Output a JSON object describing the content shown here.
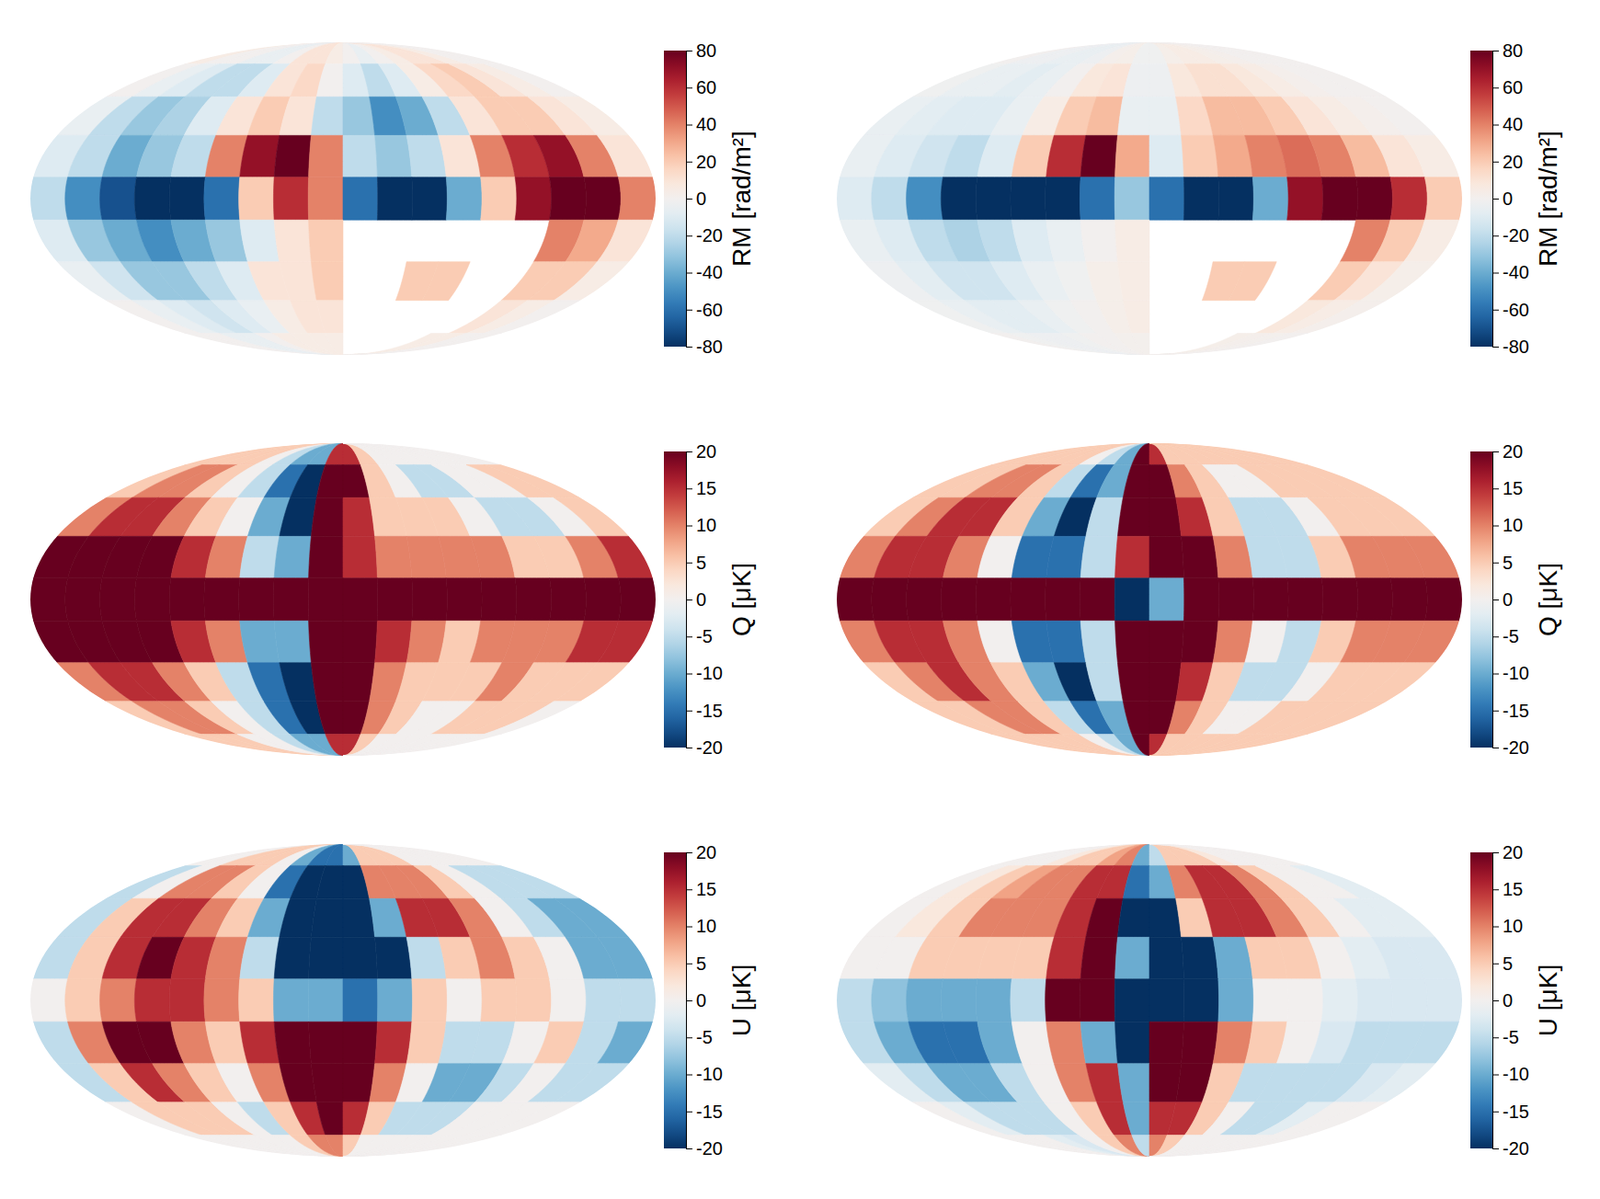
{
  "chart_data": [
    {
      "type": "heatmap",
      "lon": [
        -170,
        -150,
        -130,
        -110,
        -90,
        -70,
        -50,
        -30,
        -10,
        10,
        30,
        50,
        70,
        90,
        110,
        130,
        150,
        170
      ],
      "lat": [
        80,
        60,
        40,
        20,
        0,
        -20,
        -40,
        -60,
        -80
      ],
      "values": [
        [
          5,
          0,
          0,
          -5,
          -5,
          0,
          10,
          10,
          5,
          0,
          -5,
          0,
          5,
          10,
          10,
          5,
          0,
          0
        ],
        [
          0,
          -5,
          -10,
          -20,
          -20,
          -10,
          10,
          15,
          0,
          -10,
          -20,
          -10,
          5,
          15,
          20,
          10,
          5,
          0
        ],
        [
          -5,
          -20,
          -30,
          -25,
          -10,
          10,
          20,
          10,
          -20,
          -30,
          -50,
          -40,
          -20,
          10,
          20,
          20,
          10,
          5
        ],
        [
          -10,
          -20,
          -40,
          -30,
          -20,
          40,
          70,
          80,
          40,
          -20,
          -30,
          -20,
          10,
          40,
          60,
          70,
          40,
          10
        ],
        [
          -20,
          -50,
          -70,
          -80,
          -80,
          -60,
          20,
          60,
          40,
          -60,
          -80,
          -80,
          -40,
          20,
          70,
          80,
          80,
          40
        ],
        [
          -10,
          -30,
          -40,
          -50,
          -40,
          -30,
          -10,
          10,
          20,
          null,
          null,
          null,
          null,
          null,
          null,
          40,
          30,
          10
        ],
        [
          -5,
          -15,
          -30,
          -30,
          -20,
          -10,
          10,
          10,
          20,
          null,
          null,
          20,
          20,
          null,
          null,
          20,
          20,
          5
        ],
        [
          0,
          -5,
          -10,
          -15,
          -10,
          -5,
          5,
          10,
          10,
          null,
          null,
          null,
          null,
          null,
          null,
          10,
          5,
          0
        ],
        [
          0,
          0,
          -5,
          -5,
          0,
          5,
          5,
          5,
          5,
          null,
          null,
          null,
          null,
          null,
          5,
          5,
          0,
          0
        ]
      ],
      "colorbar": {
        "label": "RM [rad/m²]",
        "range": [
          -80,
          80
        ],
        "ticks": [
          80,
          60,
          40,
          20,
          0,
          -20,
          -40,
          -60,
          -80
        ]
      }
    },
    {
      "type": "heatmap",
      "lon": [
        -170,
        -150,
        -130,
        -110,
        -90,
        -70,
        -50,
        -30,
        -10,
        10,
        30,
        50,
        70,
        90,
        110,
        130,
        150,
        170
      ],
      "lat": [
        80,
        60,
        40,
        20,
        0,
        -20,
        -40,
        -60,
        -80
      ],
      "values": [
        [
          5,
          5,
          5,
          5,
          0,
          -5,
          -10,
          -10,
          15,
          15,
          5,
          0,
          0,
          0,
          0,
          0,
          0,
          0
        ],
        [
          5,
          10,
          10,
          5,
          0,
          -5,
          -15,
          -20,
          20,
          20,
          5,
          0,
          -5,
          -5,
          0,
          0,
          5,
          5
        ],
        [
          10,
          15,
          15,
          10,
          5,
          0,
          -10,
          -20,
          20,
          15,
          5,
          5,
          5,
          0,
          -5,
          -5,
          0,
          5
        ],
        [
          20,
          20,
          20,
          20,
          15,
          10,
          -5,
          -10,
          20,
          15,
          10,
          10,
          10,
          10,
          5,
          5,
          10,
          15
        ],
        [
          25,
          25,
          25,
          25,
          25,
          25,
          20,
          20,
          25,
          25,
          20,
          20,
          20,
          20,
          25,
          25,
          25,
          25
        ],
        [
          20,
          20,
          20,
          20,
          15,
          10,
          -10,
          -10,
          20,
          20,
          15,
          10,
          5,
          10,
          10,
          10,
          15,
          15
        ],
        [
          10,
          15,
          15,
          10,
          5,
          -5,
          -15,
          -20,
          20,
          20,
          10,
          5,
          5,
          5,
          10,
          5,
          5,
          5
        ],
        [
          5,
          10,
          10,
          5,
          0,
          -5,
          -15,
          -20,
          20,
          20,
          10,
          5,
          0,
          0,
          5,
          5,
          5,
          0
        ],
        [
          5,
          5,
          5,
          0,
          0,
          -5,
          -10,
          -10,
          15,
          15,
          5,
          0,
          0,
          0,
          0,
          0,
          0,
          0
        ]
      ],
      "colorbar": {
        "label": "Q [μK]",
        "range": [
          -20,
          20
        ],
        "ticks": [
          20,
          15,
          10,
          5,
          0,
          -5,
          -10,
          -15,
          -20
        ]
      }
    },
    {
      "type": "heatmap",
      "lon": [
        -170,
        -150,
        -130,
        -110,
        -90,
        -70,
        -50,
        -30,
        -10,
        10,
        30,
        50,
        70,
        90,
        110,
        130,
        150,
        170
      ],
      "lat": [
        80,
        60,
        40,
        20,
        0,
        -20,
        -40,
        -60,
        -80
      ],
      "values": [
        [
          0,
          0,
          5,
          5,
          5,
          0,
          -10,
          -15,
          -15,
          -10,
          5,
          5,
          5,
          0,
          0,
          0,
          0,
          0
        ],
        [
          -5,
          0,
          10,
          10,
          5,
          0,
          -15,
          -20,
          -20,
          -20,
          10,
          10,
          10,
          5,
          0,
          -5,
          -5,
          -5
        ],
        [
          -5,
          5,
          15,
          15,
          10,
          5,
          -10,
          -20,
          -20,
          -20,
          -10,
          15,
          15,
          10,
          0,
          -5,
          -10,
          -10
        ],
        [
          -5,
          5,
          15,
          20,
          15,
          10,
          -5,
          -20,
          -20,
          -20,
          -20,
          -5,
          5,
          10,
          5,
          0,
          -10,
          -10
        ],
        [
          0,
          5,
          10,
          15,
          15,
          10,
          5,
          -10,
          -10,
          -15,
          -10,
          5,
          0,
          5,
          5,
          0,
          -5,
          -5
        ],
        [
          -5,
          10,
          20,
          20,
          10,
          5,
          15,
          20,
          20,
          20,
          15,
          5,
          -5,
          -5,
          0,
          5,
          -5,
          -10
        ],
        [
          -5,
          5,
          15,
          10,
          5,
          0,
          10,
          20,
          20,
          20,
          10,
          0,
          -10,
          -10,
          -5,
          0,
          -5,
          -5
        ],
        [
          0,
          5,
          5,
          5,
          0,
          -5,
          5,
          15,
          20,
          15,
          5,
          -5,
          -5,
          -5,
          0,
          0,
          0,
          0
        ],
        [
          0,
          0,
          0,
          0,
          0,
          0,
          5,
          10,
          10,
          5,
          0,
          0,
          0,
          0,
          0,
          0,
          0,
          0
        ]
      ],
      "colorbar": {
        "label": "U [μK]",
        "range": [
          -20,
          20
        ],
        "ticks": [
          20,
          15,
          10,
          5,
          0,
          -5,
          -10,
          -15,
          -20
        ]
      }
    },
    {
      "type": "heatmap",
      "lon": [
        -170,
        -150,
        -130,
        -110,
        -90,
        -70,
        -50,
        -30,
        -10,
        10,
        30,
        50,
        70,
        90,
        110,
        130,
        150,
        170
      ],
      "lat": [
        80,
        60,
        40,
        20,
        0,
        -20,
        -40,
        -60,
        -80
      ],
      "values": [
        [
          0,
          -3,
          -3,
          -5,
          -5,
          -3,
          2,
          3,
          -2,
          -2,
          3,
          5,
          5,
          3,
          2,
          0,
          0,
          0
        ],
        [
          -2,
          -5,
          -5,
          -8,
          -5,
          0,
          8,
          10,
          -3,
          -3,
          8,
          12,
          12,
          8,
          5,
          2,
          0,
          0
        ],
        [
          -5,
          -8,
          -10,
          -10,
          -5,
          5,
          20,
          25,
          -5,
          -5,
          15,
          25,
          25,
          20,
          10,
          5,
          2,
          0
        ],
        [
          -5,
          -10,
          -15,
          -20,
          -10,
          20,
          60,
          80,
          30,
          -10,
          20,
          30,
          40,
          45,
          40,
          25,
          10,
          5
        ],
        [
          -10,
          -20,
          -50,
          -80,
          -80,
          -80,
          -80,
          -60,
          -30,
          -60,
          -80,
          -80,
          -40,
          70,
          80,
          80,
          60,
          20
        ],
        [
          -5,
          -10,
          -20,
          -25,
          -20,
          -10,
          -5,
          0,
          5,
          null,
          null,
          null,
          null,
          null,
          null,
          40,
          20,
          5
        ],
        [
          -3,
          -8,
          -15,
          -15,
          -10,
          -5,
          -2,
          3,
          5,
          null,
          null,
          20,
          20,
          null,
          null,
          20,
          10,
          3
        ],
        [
          -2,
          -5,
          -8,
          -8,
          -5,
          -2,
          0,
          3,
          5,
          null,
          null,
          null,
          null,
          null,
          null,
          8,
          5,
          2
        ],
        [
          0,
          -2,
          -3,
          -3,
          -2,
          0,
          0,
          1,
          1,
          null,
          null,
          null,
          null,
          null,
          3,
          2,
          1,
          0
        ]
      ],
      "colorbar": {
        "label": "RM [rad/m²]",
        "range": [
          -80,
          80
        ],
        "ticks": [
          80,
          60,
          40,
          20,
          0,
          -20,
          -40,
          -60,
          -80
        ]
      }
    },
    {
      "type": "heatmap",
      "lon": [
        -170,
        -150,
        -130,
        -110,
        -90,
        -70,
        -50,
        -30,
        -10,
        10,
        30,
        50,
        70,
        90,
        110,
        130,
        150,
        170
      ],
      "lat": [
        80,
        60,
        40,
        20,
        0,
        -20,
        -40,
        -60,
        -80
      ],
      "values": [
        [
          5,
          5,
          5,
          5,
          5,
          0,
          -5,
          -10,
          20,
          15,
          5,
          5,
          5,
          5,
          5,
          5,
          5,
          5
        ],
        [
          5,
          5,
          10,
          10,
          5,
          -5,
          -15,
          -10,
          20,
          20,
          10,
          5,
          0,
          0,
          5,
          5,
          5,
          5
        ],
        [
          5,
          10,
          15,
          15,
          5,
          -10,
          -20,
          -5,
          20,
          20,
          15,
          5,
          -5,
          -5,
          0,
          5,
          5,
          5
        ],
        [
          10,
          15,
          15,
          10,
          0,
          -15,
          -15,
          -5,
          15,
          20,
          20,
          10,
          -5,
          -5,
          5,
          10,
          10,
          10
        ],
        [
          25,
          25,
          25,
          25,
          25,
          25,
          25,
          20,
          -20,
          -10,
          20,
          20,
          20,
          20,
          25,
          25,
          25,
          25
        ],
        [
          10,
          15,
          15,
          10,
          0,
          -15,
          -15,
          -5,
          20,
          20,
          20,
          10,
          0,
          -5,
          5,
          10,
          10,
          10
        ],
        [
          5,
          10,
          15,
          10,
          5,
          -10,
          -20,
          -5,
          20,
          20,
          15,
          5,
          -5,
          -5,
          0,
          5,
          5,
          5
        ],
        [
          5,
          5,
          10,
          10,
          5,
          -5,
          -15,
          -10,
          20,
          20,
          10,
          5,
          0,
          0,
          5,
          5,
          5,
          5
        ],
        [
          5,
          5,
          5,
          5,
          5,
          0,
          -5,
          -10,
          20,
          15,
          5,
          5,
          5,
          5,
          5,
          5,
          5,
          5
        ]
      ],
      "colorbar": {
        "label": "Q [μK]",
        "range": [
          -20,
          20
        ],
        "ticks": [
          20,
          15,
          10,
          5,
          0,
          -5,
          -10,
          -15,
          -20
        ]
      }
    },
    {
      "type": "heatmap",
      "lon": [
        -170,
        -150,
        -130,
        -110,
        -90,
        -70,
        -50,
        -30,
        -10,
        10,
        30,
        50,
        70,
        90,
        110,
        130,
        150,
        170
      ],
      "lat": [
        80,
        60,
        40,
        20,
        0,
        -20,
        -40,
        -60,
        -80
      ],
      "values": [
        [
          0,
          0,
          0,
          2,
          5,
          5,
          8,
          10,
          -10,
          -5,
          5,
          5,
          5,
          2,
          0,
          0,
          0,
          0
        ],
        [
          0,
          2,
          5,
          8,
          10,
          10,
          15,
          15,
          -15,
          -10,
          10,
          15,
          15,
          10,
          5,
          0,
          0,
          -2
        ],
        [
          0,
          2,
          5,
          10,
          10,
          10,
          15,
          20,
          -20,
          -20,
          5,
          15,
          15,
          10,
          5,
          0,
          -2,
          -2
        ],
        [
          0,
          0,
          5,
          5,
          5,
          5,
          15,
          20,
          -10,
          -20,
          -20,
          -10,
          5,
          5,
          0,
          -2,
          -3,
          -3
        ],
        [
          -5,
          -8,
          -10,
          -10,
          -10,
          -5,
          20,
          20,
          -20,
          -20,
          -20,
          -10,
          0,
          0,
          -2,
          -3,
          -3,
          -3
        ],
        [
          -5,
          -10,
          -15,
          -15,
          -10,
          0,
          10,
          -10,
          -20,
          20,
          20,
          10,
          5,
          0,
          -3,
          -5,
          -5,
          -5
        ],
        [
          -2,
          -5,
          -10,
          -10,
          -5,
          0,
          10,
          15,
          -10,
          20,
          20,
          5,
          -5,
          -5,
          -5,
          -5,
          -3,
          -2
        ],
        [
          0,
          -2,
          -5,
          -5,
          -5,
          0,
          5,
          15,
          -10,
          15,
          15,
          5,
          0,
          -5,
          -5,
          -2,
          0,
          0
        ],
        [
          0,
          0,
          0,
          -2,
          -3,
          0,
          5,
          10,
          -5,
          10,
          5,
          0,
          0,
          0,
          0,
          0,
          0,
          0
        ]
      ],
      "colorbar": {
        "label": "U [μK]",
        "range": [
          -20,
          20
        ],
        "ticks": [
          20,
          15,
          10,
          5,
          0,
          -5,
          -10,
          -15,
          -20
        ]
      }
    }
  ]
}
